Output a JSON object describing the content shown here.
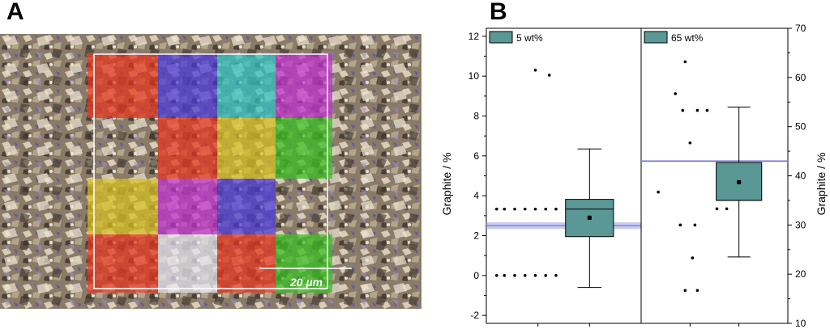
{
  "panels": {
    "a_label": "A",
    "b_label": "B"
  },
  "micrograph": {
    "scale_bar_label": "20 µm",
    "tile_colors": [
      [
        "#e8331c",
        "#4a38d8",
        "#2ec4c4",
        "#c030d0"
      ],
      [
        null,
        "#e8331c",
        "#d8c020",
        "#36c020"
      ],
      [
        "#d8c020",
        "#c030d0",
        "#4a38d8",
        null
      ],
      [
        "#e8331c",
        "#e6e6f0",
        "#e8331c",
        "#36c020"
      ]
    ]
  },
  "chart_data": [
    {
      "type": "box",
      "legend": "5 wt%",
      "ylabel": "Graphite / %",
      "ylim": [
        -2.4,
        12.4
      ],
      "yticks": [
        -2,
        0,
        2,
        4,
        6,
        8,
        10,
        12
      ],
      "axis_side": "left",
      "points": [
        [
          0.95,
          10.3
        ],
        [
          1.22,
          10.05
        ],
        [
          0.2,
          3.33
        ],
        [
          0.35,
          3.33
        ],
        [
          0.55,
          3.33
        ],
        [
          0.75,
          3.33
        ],
        [
          0.95,
          3.33
        ],
        [
          1.15,
          3.33
        ],
        [
          1.35,
          3.33
        ],
        [
          0.2,
          0
        ],
        [
          0.35,
          0
        ],
        [
          0.55,
          0
        ],
        [
          0.75,
          0
        ],
        [
          0.95,
          0
        ],
        [
          1.15,
          0
        ],
        [
          1.35,
          0
        ]
      ],
      "box": {
        "whisker_low": -0.6,
        "q1": 1.95,
        "median": 3.33,
        "q3": 3.82,
        "whisker_high": 6.35,
        "mean": 2.9
      },
      "reference_line": {
        "value": 2.5,
        "band": [
          2.33,
          2.67
        ]
      }
    },
    {
      "type": "box",
      "legend": "65 wt%",
      "ylabel": "Graphite / %",
      "ylim": [
        10,
        70
      ],
      "yticks": [
        10,
        20,
        30,
        40,
        50,
        60,
        70
      ],
      "axis_side": "right",
      "points": [
        [
          0.9,
          63.2
        ],
        [
          0.7,
          56.7
        ],
        [
          0.85,
          53.3
        ],
        [
          1.15,
          53.3
        ],
        [
          1.35,
          53.3
        ],
        [
          1.0,
          46.7
        ],
        [
          0.35,
          36.7
        ],
        [
          1.55,
          33.3
        ],
        [
          1.75,
          33.3
        ],
        [
          0.8,
          30
        ],
        [
          1.1,
          30
        ],
        [
          1.05,
          23.3
        ],
        [
          0.9,
          16.7
        ],
        [
          1.15,
          16.7
        ]
      ],
      "box": {
        "whisker_low": 23.5,
        "q1": 35,
        "median": 35,
        "q3": 42.7,
        "whisker_high": 54,
        "mean": 38.7
      },
      "reference_line": {
        "value": 43,
        "band": [
          42.8,
          43.2
        ]
      }
    }
  ]
}
